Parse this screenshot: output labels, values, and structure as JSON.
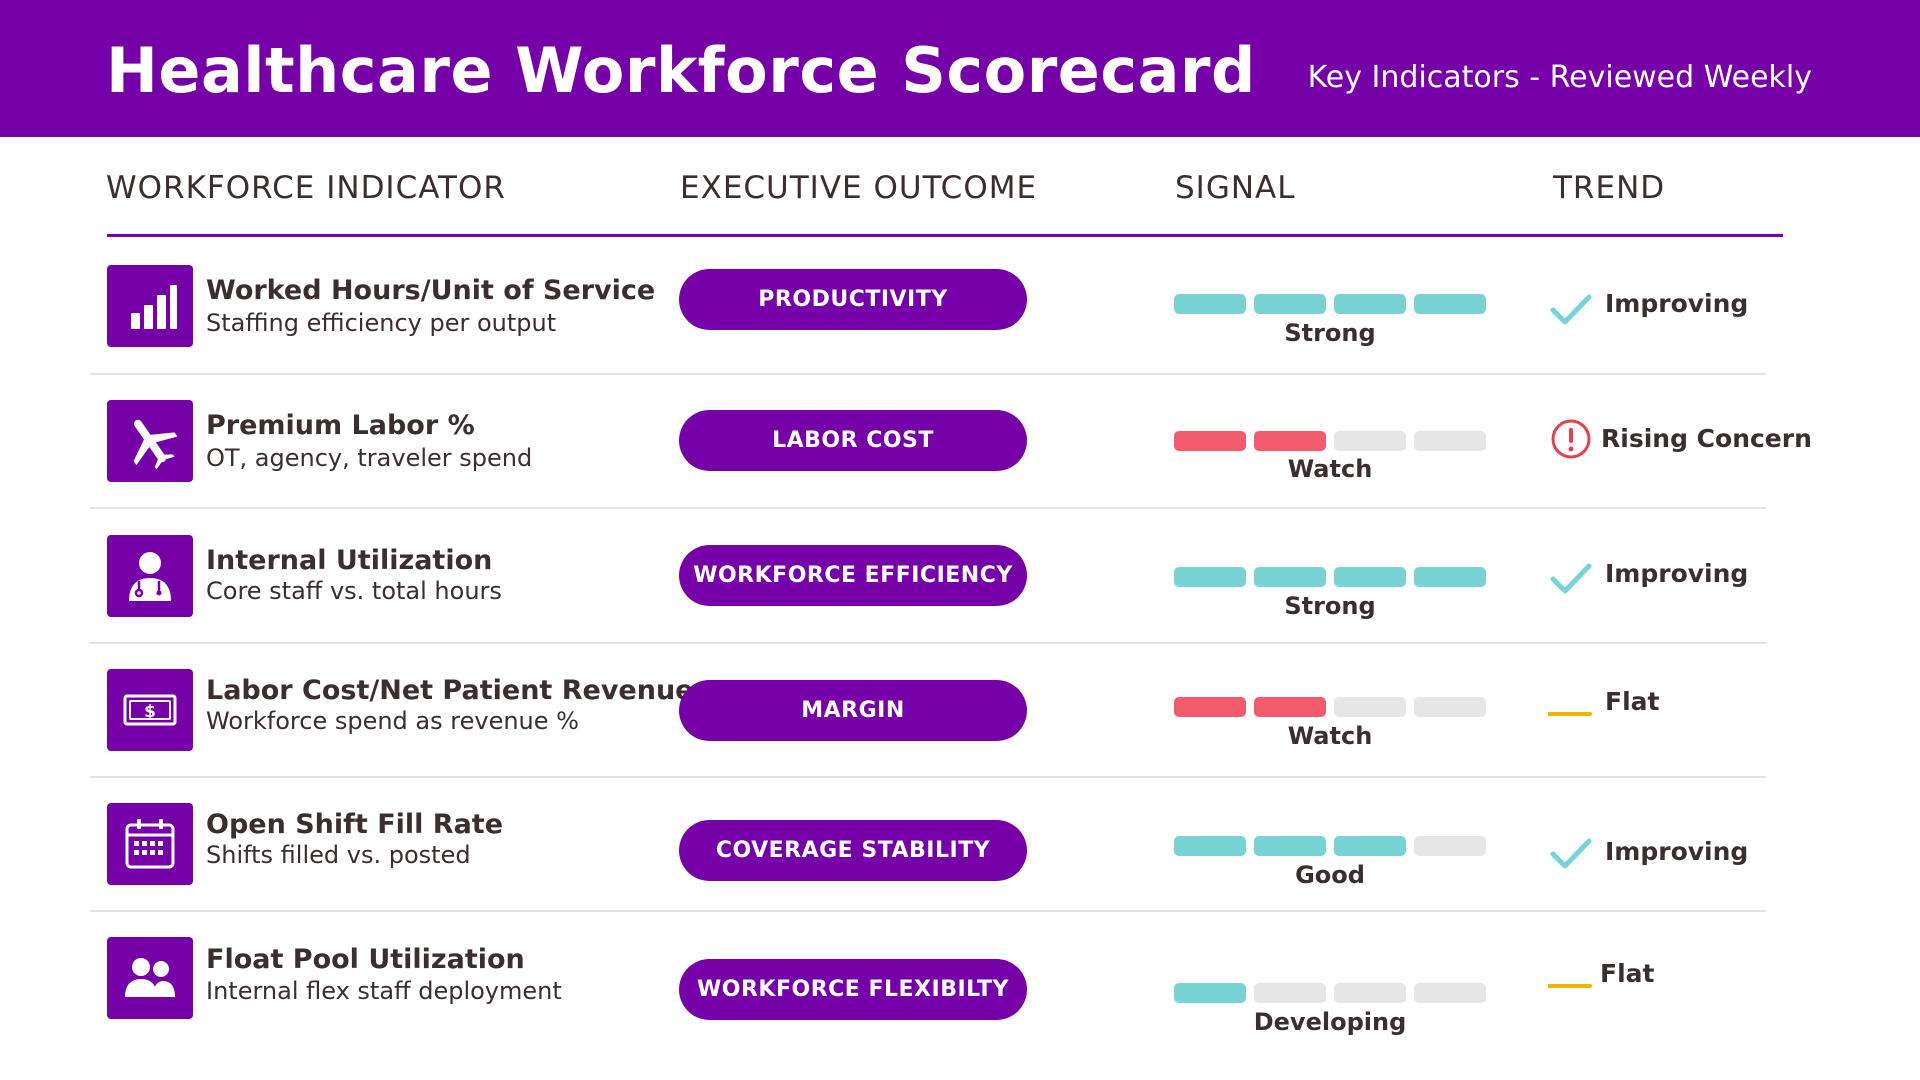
{
  "header": {
    "title": "Healthcare Workforce Scorecard",
    "subtitle": "Key Indicators - Reviewed Weekly"
  },
  "columns": {
    "indicator": "WORKFORCE INDICATOR",
    "outcome": "EXECUTIVE OUTCOME",
    "signal": "SIGNAL",
    "trend": "TREND"
  },
  "colors": {
    "brand": "#7500a8",
    "signal_good": "#78d4d4",
    "signal_bad": "#f25b6c",
    "signal_empty": "#e6e6e6",
    "flat": "#f5b400",
    "concern": "#e5404f"
  },
  "rows": [
    {
      "icon": "bar-chart-icon",
      "title": "Worked Hours/Unit of Service",
      "subtitle": "Staffing efficiency per output",
      "outcome": "PRODUCTIVITY",
      "signal": {
        "level": 4,
        "max": 4,
        "tone": "good",
        "label": "Strong"
      },
      "trend": {
        "icon": "check-icon",
        "label": "Improving"
      }
    },
    {
      "icon": "airplane-icon",
      "title": "Premium Labor %",
      "subtitle": "OT, agency, traveler spend",
      "outcome": "LABOR COST",
      "signal": {
        "level": 2,
        "max": 4,
        "tone": "bad",
        "label": "Watch"
      },
      "trend": {
        "icon": "alert-circle-icon",
        "label": "Rising Concern"
      }
    },
    {
      "icon": "clinician-icon",
      "title": "Internal Utilization",
      "subtitle": "Core staff vs. total hours",
      "outcome": "WORKFORCE EFFICIENCY",
      "signal": {
        "level": 4,
        "max": 4,
        "tone": "good",
        "label": "Strong"
      },
      "trend": {
        "icon": "check-icon",
        "label": "Improving"
      }
    },
    {
      "icon": "cash-icon",
      "title": "Labor Cost/Net Patient Revenue",
      "subtitle": "Workforce spend as revenue %",
      "outcome": "MARGIN",
      "signal": {
        "level": 2,
        "max": 4,
        "tone": "bad",
        "label": "Watch"
      },
      "trend": {
        "icon": "flat-line-icon",
        "label": "Flat"
      }
    },
    {
      "icon": "calendar-icon",
      "title": "Open Shift Fill Rate",
      "subtitle": "Shifts filled vs. posted",
      "outcome": "COVERAGE STABILITY",
      "signal": {
        "level": 3,
        "max": 4,
        "tone": "good",
        "label": "Good"
      },
      "trend": {
        "icon": "check-icon",
        "label": "Improving"
      }
    },
    {
      "icon": "people-icon",
      "title": "Float Pool Utilization",
      "subtitle": "Internal flex staff deployment",
      "outcome": "WORKFORCE FLEXIBILTY",
      "signal": {
        "level": 1,
        "max": 4,
        "tone": "good",
        "label": "Developing"
      },
      "trend": {
        "icon": "flat-line-icon",
        "label": "Flat"
      }
    }
  ]
}
